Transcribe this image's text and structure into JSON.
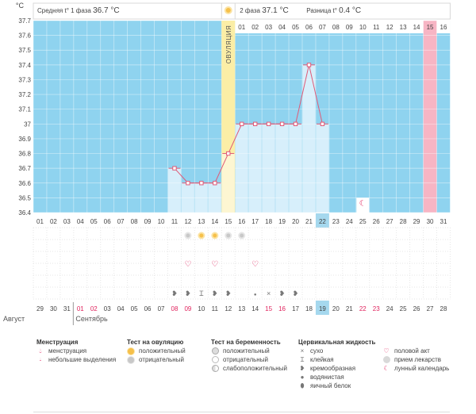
{
  "chart_data": {
    "type": "line",
    "ylabel": "°C",
    "yticks": [
      "37.7",
      "37.6",
      "37.5",
      "37.4",
      "37.3",
      "37.2",
      "37.1",
      "37",
      "36.9",
      "36.8",
      "36.7",
      "36.6",
      "36.5",
      "36.4"
    ],
    "ylim": [
      36.4,
      37.7
    ],
    "header": {
      "left_label": "Средняя t° 1 фаза",
      "left_value": "36.7 °C",
      "phase2_label": "2 фаза",
      "phase2_value": "37.1 °C",
      "diff_label": "Разница t°",
      "diff_value": "0.4 °C"
    },
    "ovulation_label": "ОВУЛЯЦИЯ",
    "ovulation_day": 15,
    "post_ovulation_days": [
      "01",
      "02",
      "03",
      "04",
      "05",
      "06",
      "07",
      "08",
      "09",
      "10",
      "11",
      "12",
      "13",
      "14",
      "15",
      "16"
    ],
    "highlight_post_day": "15",
    "cycle_days": [
      "01",
      "02",
      "03",
      "04",
      "05",
      "06",
      "07",
      "08",
      "09",
      "10",
      "11",
      "12",
      "13",
      "14",
      "15",
      "16",
      "17",
      "18",
      "19",
      "20",
      "21",
      "22",
      "23",
      "24",
      "25",
      "26",
      "27",
      "28",
      "29",
      "30",
      "31"
    ],
    "today_cycle_day": "22",
    "series": [
      {
        "days": [
          11,
          12,
          13,
          14,
          15,
          16,
          17,
          18,
          19,
          20,
          21,
          22
        ],
        "values": [
          36.7,
          36.6,
          36.6,
          36.6,
          36.8,
          37.0,
          37.0,
          37.0,
          37.0,
          37.0,
          37.4,
          37.0
        ]
      }
    ],
    "marker_row_ovulation_test": [
      {
        "day": 12,
        "kind": "negative"
      },
      {
        "day": 13,
        "kind": "positive"
      },
      {
        "day": 14,
        "kind": "positive"
      },
      {
        "day": 15,
        "kind": "negative"
      },
      {
        "day": 16,
        "kind": "negative"
      }
    ],
    "marker_row_sex": [
      12,
      14,
      17
    ],
    "marker_row_fluid": [
      {
        "day": 11,
        "kind": "creamy"
      },
      {
        "day": 12,
        "kind": "creamy"
      },
      {
        "day": 13,
        "kind": "sticky"
      },
      {
        "day": 14,
        "kind": "creamy"
      },
      {
        "day": 15,
        "kind": "creamy"
      },
      {
        "day": 17,
        "kind": "watery"
      },
      {
        "day": 18,
        "kind": "dry"
      },
      {
        "day": 19,
        "kind": "creamy"
      },
      {
        "day": 20,
        "kind": "creamy"
      }
    ],
    "moon_day": 25,
    "fertile_day": 30,
    "calendar_dates": [
      {
        "d": "29",
        "red": false
      },
      {
        "d": "30",
        "red": false
      },
      {
        "d": "31",
        "red": false
      },
      {
        "d": "01",
        "red": true
      },
      {
        "d": "02",
        "red": true
      },
      {
        "d": "03",
        "red": false
      },
      {
        "d": "04",
        "red": false
      },
      {
        "d": "05",
        "red": false
      },
      {
        "d": "06",
        "red": false
      },
      {
        "d": "07",
        "red": false
      },
      {
        "d": "08",
        "red": true
      },
      {
        "d": "09",
        "red": true
      },
      {
        "d": "10",
        "red": false
      },
      {
        "d": "11",
        "red": false
      },
      {
        "d": "12",
        "red": false
      },
      {
        "d": "13",
        "red": false
      },
      {
        "d": "14",
        "red": false
      },
      {
        "d": "15",
        "red": true
      },
      {
        "d": "16",
        "red": true
      },
      {
        "d": "17",
        "red": false
      },
      {
        "d": "18",
        "red": false
      },
      {
        "d": "19",
        "red": false
      },
      {
        "d": "20",
        "red": false
      },
      {
        "d": "21",
        "red": false
      },
      {
        "d": "22",
        "red": true
      },
      {
        "d": "23",
        "red": true
      },
      {
        "d": "24",
        "red": false
      },
      {
        "d": "25",
        "red": false
      },
      {
        "d": "26",
        "red": false
      },
      {
        "d": "27",
        "red": false
      },
      {
        "d": "28",
        "red": false
      }
    ],
    "today_calendar_date": "19",
    "month_left": "Август",
    "month_right": "Сентябрь"
  },
  "colors": {
    "grid_bg": "#8fd3ef",
    "bar": "#d7effb",
    "ovulation": "#fbeea6",
    "fertile": "#f7b5c4",
    "line": "#e05a77",
    "today": "#a5d8ee",
    "red_date": "#e0245e"
  },
  "legend": {
    "menstruation": {
      "title": "Менструация",
      "items": [
        {
          "icon": "blood-drop-icon",
          "label": "менструация"
        },
        {
          "icon": "small-drop-icon",
          "label": "небольшие выделения"
        }
      ]
    },
    "ovulation_test": {
      "title": "Тест на овуляцию",
      "items": [
        {
          "icon": "sun-positive-icon",
          "label": "положительный"
        },
        {
          "icon": "sun-negative-icon",
          "label": "отрицательный"
        }
      ]
    },
    "pregnancy_test": {
      "title": "Тест на беременность",
      "items": [
        {
          "icon": "circle-positive-icon",
          "label": "положительный"
        },
        {
          "icon": "circle-negative-icon",
          "label": "отрицательный"
        },
        {
          "icon": "circle-weak-icon",
          "label": "слабоположительный"
        }
      ]
    },
    "cervical_fluid": {
      "title": "Цервикальная жидкость",
      "items": [
        {
          "icon": "cross-icon",
          "label": "сухо"
        },
        {
          "icon": "sticky-icon",
          "label": "клейкая"
        },
        {
          "icon": "creamy-icon",
          "label": "кремообразная"
        },
        {
          "icon": "water-drop-icon",
          "label": "водянистая"
        },
        {
          "icon": "egg-white-icon",
          "label": "яичный белок"
        }
      ]
    },
    "other": {
      "items": [
        {
          "icon": "heart-icon",
          "label": "половой акт"
        },
        {
          "icon": "pill-icon",
          "label": "прием лекарств"
        },
        {
          "icon": "moon-icon",
          "label": "лунный календарь"
        }
      ]
    }
  }
}
